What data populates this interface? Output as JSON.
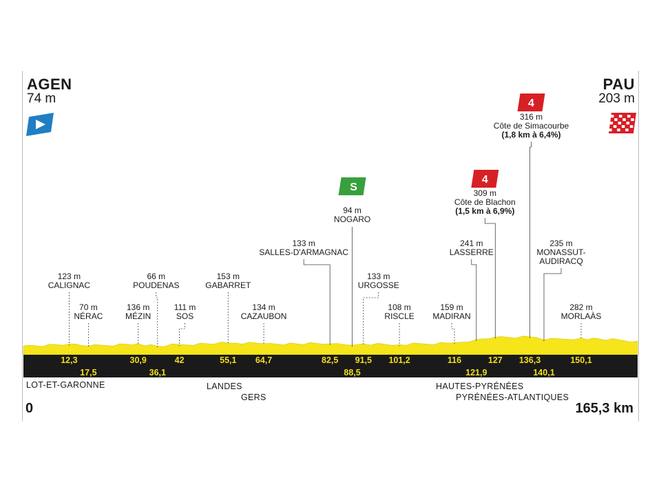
{
  "start": {
    "city": "AGEN",
    "altitude": "74 m",
    "km": "0"
  },
  "finish": {
    "city": "PAU",
    "altitude": "203 m",
    "km": "165,3 km"
  },
  "colors": {
    "profile": "#f5e51a",
    "band": "#1a1a1a",
    "km_text": "#f2df1b",
    "climb": "#d71f26",
    "sprint": "#37a03c",
    "start_flag": "#1f7fc2"
  },
  "icons": {
    "start": "start-flag-icon",
    "finish": "checkered-flag-icon",
    "sprint": "sprint-icon",
    "climb": "climb-category-icon"
  },
  "waypoints": [
    {
      "name": "CALIGNAC",
      "altitude": "123 m",
      "km": "12,3",
      "row": "upper",
      "km_row": "top"
    },
    {
      "name": "NÉRAC",
      "altitude": "70 m",
      "km": "17,5",
      "row": "lower",
      "km_row": "bottom"
    },
    {
      "name": "MÉZIN",
      "altitude": "136 m",
      "km": "30,9",
      "row": "lower",
      "km_row": "top"
    },
    {
      "name": "POUDENAS",
      "altitude": "66 m",
      "km": "36,1",
      "row": "upper",
      "km_row": "bottom"
    },
    {
      "name": "SOS",
      "altitude": "111 m",
      "km": "42",
      "row": "lower",
      "km_row": "top"
    },
    {
      "name": "GABARRET",
      "altitude": "153 m",
      "km": "55,1",
      "row": "upper",
      "km_row": "top"
    },
    {
      "name": "CAZAUBON",
      "altitude": "134 m",
      "km": "64,7",
      "row": "lower",
      "km_row": "top"
    },
    {
      "name": "SALLES-D'ARMAGNAC",
      "altitude": "133 m",
      "km": "82,5",
      "row": "high",
      "km_row": "top"
    },
    {
      "name": "NOGARO",
      "altitude": "94 m",
      "km": "88,5",
      "row": "sprint",
      "km_row": "bottom",
      "sprint": "S"
    },
    {
      "name": "URGOSSE",
      "altitude": "133 m",
      "km": "91,5",
      "row": "upper",
      "km_row": "top"
    },
    {
      "name": "RISCLE",
      "altitude": "108 m",
      "km": "101,2",
      "row": "lower",
      "km_row": "top"
    },
    {
      "name": "MADIRAN",
      "altitude": "159 m",
      "km": "116",
      "row": "lower",
      "km_row": "top"
    },
    {
      "name": "LASSERRE",
      "altitude": "241 m",
      "km": "121,9",
      "row": "high",
      "km_row": "bottom"
    },
    {
      "name": "Côte de Blachon",
      "altitude": "309 m",
      "km": "127",
      "row": "climb",
      "km_row": "top",
      "climb_detail": "(1,5 km à 6,9%)",
      "category": "4"
    },
    {
      "name": "Côte de Simacourbe",
      "altitude": "316 m",
      "km": "136,3",
      "row": "climb",
      "km_row": "top",
      "climb_detail": "(1,8 km à 6,4%)",
      "category": "4"
    },
    {
      "name": "MONASSUT-\nAUDIRACQ",
      "altitude": "235 m",
      "km": "140,1",
      "row": "high",
      "km_row": "bottom"
    },
    {
      "name": "MORLAÀS",
      "altitude": "282 m",
      "km": "150,1",
      "row": "lower",
      "km_row": "top"
    }
  ],
  "departments": [
    "LOT-ET-GARONNE",
    "LANDES",
    "GERS",
    "HAUTES-PYRÉNÉES",
    "PYRÉNÉES-ATLANTIQUES"
  ],
  "chart_data": {
    "type": "area",
    "x_unit": "km",
    "y_unit": "m",
    "xlim": [
      0,
      165.3
    ],
    "x": [
      0,
      12.3,
      17.5,
      30.9,
      36.1,
      42,
      55.1,
      64.7,
      82.5,
      88.5,
      91.5,
      101.2,
      116,
      121.9,
      127,
      136.3,
      140.1,
      150.1,
      165.3
    ],
    "y": [
      74,
      123,
      70,
      136,
      66,
      111,
      153,
      134,
      133,
      94,
      133,
      108,
      159,
      241,
      309,
      316,
      235,
      282,
      203
    ]
  }
}
